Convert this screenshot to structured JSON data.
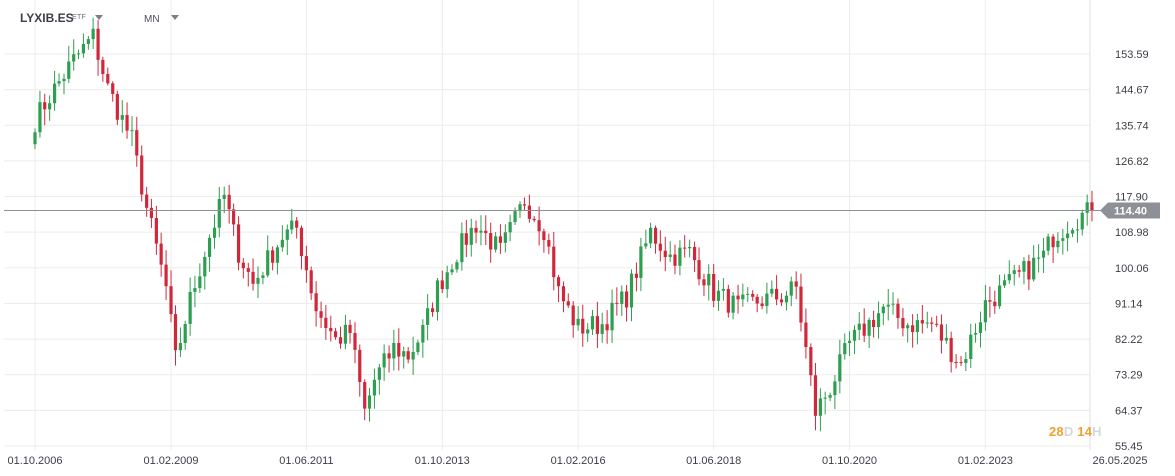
{
  "header": {
    "ticker": "LYXIB.ES",
    "badge": "ETF",
    "interval": "MN"
  },
  "range": {
    "days": "28",
    "days_unit": "D",
    "hours": "14",
    "hours_unit": "H"
  },
  "colors": {
    "up": "#2e9e50",
    "down": "#d0283a",
    "grid": "#ececec",
    "price_line": "#8d9197",
    "price_box": "#8d9197"
  },
  "chart_data": {
    "type": "candlestick",
    "title": "",
    "xlabel": "",
    "ylabel": "",
    "grid": true,
    "y_ticks": [
      "153.59",
      "144.67",
      "135.74",
      "126.82",
      "117.90",
      "108.98",
      "100.06",
      "91.14",
      "82.22",
      "73.29",
      "64.37",
      "55.45"
    ],
    "ylim": [
      55.45,
      158.0
    ],
    "x_ticks": [
      "01.10.2006",
      "01.02.2009",
      "01.06.2011",
      "01.10.2013",
      "01.02.2016",
      "01.06.2018",
      "01.10.2020",
      "01.02.2023",
      "26.05.2025"
    ],
    "x_range": [
      "01.10.2006",
      "26.05.2025"
    ],
    "last_price": 114.4,
    "last_price_label": "114.40",
    "anchors": [
      [
        "2006-10",
        137
      ],
      [
        "2007-01",
        143
      ],
      [
        "2007-06",
        152
      ],
      [
        "2007-10",
        158
      ],
      [
        "2008-01",
        145
      ],
      [
        "2008-06",
        132
      ],
      [
        "2008-09",
        115
      ],
      [
        "2009-01",
        95
      ],
      [
        "2009-03",
        77
      ],
      [
        "2009-06",
        92
      ],
      [
        "2009-10",
        108
      ],
      [
        "2010-01",
        118
      ],
      [
        "2010-04",
        104
      ],
      [
        "2010-07",
        96
      ],
      [
        "2010-10",
        102
      ],
      [
        "2011-01",
        108
      ],
      [
        "2011-04",
        110
      ],
      [
        "2011-08",
        90
      ],
      [
        "2011-12",
        82
      ],
      [
        "2012-03",
        84
      ],
      [
        "2012-06",
        64
      ],
      [
        "2012-08",
        72
      ],
      [
        "2012-12",
        80
      ],
      [
        "2013-03",
        78
      ],
      [
        "2013-06",
        84
      ],
      [
        "2013-09",
        95
      ],
      [
        "2014-01",
        104
      ],
      [
        "2014-05",
        111
      ],
      [
        "2014-10",
        104
      ],
      [
        "2015-03",
        117
      ],
      [
        "2015-07",
        110
      ],
      [
        "2015-10",
        94
      ],
      [
        "2016-02",
        85
      ],
      [
        "2016-07",
        86
      ],
      [
        "2016-12",
        93
      ],
      [
        "2017-05",
        109
      ],
      [
        "2017-09",
        103
      ],
      [
        "2018-01",
        104
      ],
      [
        "2018-06",
        94
      ],
      [
        "2018-11",
        90
      ],
      [
        "2019-04",
        92
      ],
      [
        "2019-08",
        93
      ],
      [
        "2019-11",
        95
      ],
      [
        "2020-03",
        64
      ],
      [
        "2020-06",
        70
      ],
      [
        "2020-10",
        81
      ],
      [
        "2021-05",
        90
      ],
      [
        "2021-10",
        86
      ],
      [
        "2022-03",
        86
      ],
      [
        "2022-09",
        76
      ],
      [
        "2023-02",
        91
      ],
      [
        "2023-08",
        97
      ],
      [
        "2024-02",
        103
      ],
      [
        "2024-04",
        108
      ],
      [
        "2024-08",
        112
      ],
      [
        "2024-12",
        114.4
      ]
    ]
  }
}
